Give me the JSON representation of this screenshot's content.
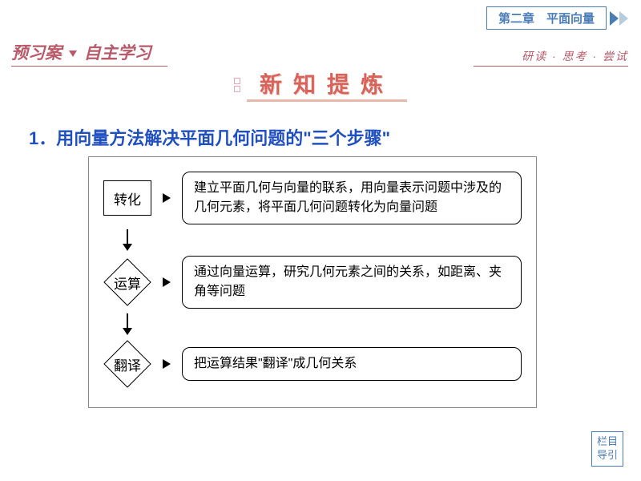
{
  "chapter": "第二章　平面向量",
  "section_left": "预习案",
  "section_right": "自主学习",
  "subtitle": "研读 · 思考 · 尝试",
  "banner": "新知提炼",
  "heading_number": "1．",
  "heading_text": "用向量方法解决平面几何问题的\"三个步骤\"",
  "steps": [
    {
      "label": "转化",
      "shape": "rect",
      "desc": "建立平面几何与向量的联系，用向量表示问题中涉及的几何元素，将平面几何问题转化为向量问题"
    },
    {
      "label": "运算",
      "shape": "diamond",
      "desc": "通过向量运算，研究几何元素之间的关系，如距离、夹角等问题"
    },
    {
      "label": "翻译",
      "shape": "diamond",
      "desc": "把运算结果\"翻译\"成几何关系"
    }
  ],
  "nav_line1": "栏目",
  "nav_line2": "导引",
  "colors": {
    "blue": "#4a7db8",
    "pink": "#b85a6a",
    "orange": "#d9635a",
    "heading_blue": "#2050c0"
  }
}
